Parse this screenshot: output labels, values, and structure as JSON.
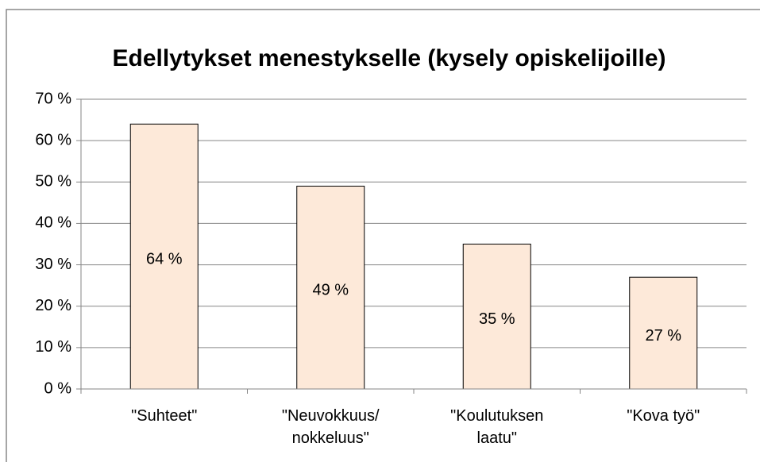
{
  "chart_data": {
    "type": "bar",
    "title": "Edellytykset menestykselle (kysely opiskelijoille)",
    "categories": [
      "\"Suhteet\"",
      "\"Neuvokkuus/ nokkeluus\"",
      "\"Koulutuksen laatu\"",
      "\"Kova työ\""
    ],
    "values": [
      64,
      49,
      35,
      27
    ],
    "value_labels": [
      "64 %",
      "49 %",
      "35 %",
      "27 %"
    ],
    "color": "#fde9d9",
    "ylim": [
      0,
      70
    ],
    "yticks": [
      {
        "value": 0,
        "label": "0 %"
      },
      {
        "value": 10,
        "label": "10 %"
      },
      {
        "value": 20,
        "label": "20 %"
      },
      {
        "value": 30,
        "label": "30 %"
      },
      {
        "value": 40,
        "label": "40 %"
      },
      {
        "value": 50,
        "label": "50 %"
      },
      {
        "value": 60,
        "label": "60 %"
      },
      {
        "value": 70,
        "label": "70 %"
      }
    ],
    "grid": true
  }
}
